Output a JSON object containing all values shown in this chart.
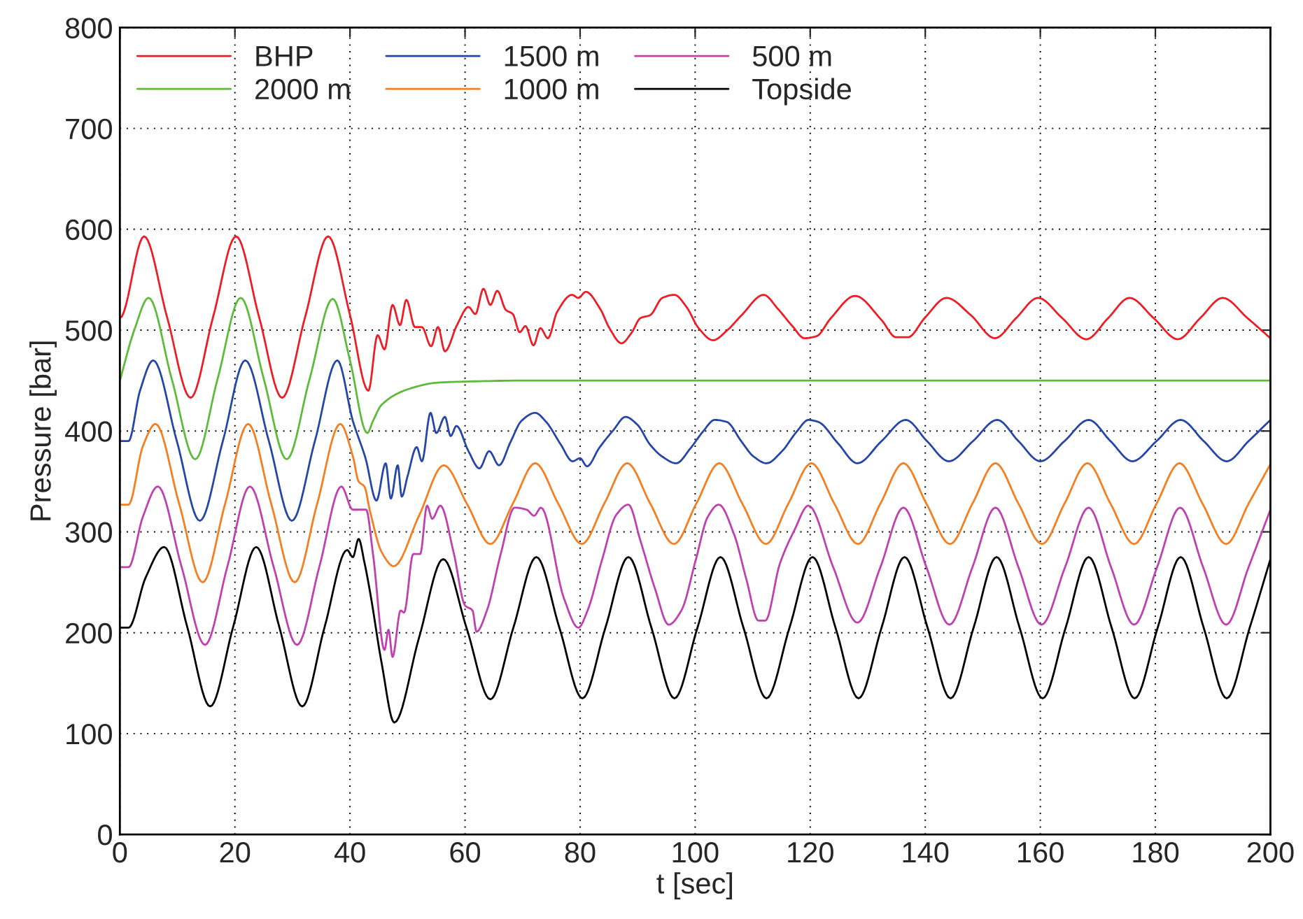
{
  "chart_data": {
    "type": "line",
    "xlabel": "t [sec]",
    "ylabel": "Pressure [bar]",
    "xlim": [
      0,
      200
    ],
    "xticks": [
      0,
      20,
      40,
      60,
      80,
      100,
      120,
      140,
      160,
      180,
      200
    ],
    "ylim": [
      0,
      800
    ],
    "yticks": [
      0,
      100,
      200,
      300,
      400,
      500,
      600,
      700,
      800
    ],
    "grid": true,
    "legend": "top left",
    "marker": "none",
    "line_style": "solid",
    "series": [
      {
        "name": "BHP",
        "color": "#ee1c25",
        "x": [
          0,
          4.2,
          8.2,
          12.3,
          16.2,
          20.2,
          24.2,
          28.2,
          32.2,
          36.2,
          40,
          43.2,
          44.8,
          46,
          47.4,
          48.7,
          49.8,
          51.3,
          52.5,
          54.1,
          55.3,
          56.5,
          58.6,
          60.6,
          61.8,
          63.2,
          64.4,
          65.6,
          67.1,
          68.3,
          69.5,
          70.5,
          71.9,
          73.1,
          74.4,
          76,
          78.6,
          79.7,
          81,
          83.5,
          85.1,
          87.2,
          88.9,
          90.5,
          92.2,
          94.3,
          96.4,
          98.5,
          100.6,
          103.1,
          105.6,
          108.1,
          111.9,
          114.4,
          116.9,
          119,
          121.1,
          123.6,
          127.8,
          132.4,
          134.9,
          137,
          139.9,
          143.7,
          147.9,
          152.1,
          155.8,
          159.6,
          163.8,
          168,
          171.8,
          175.5,
          179.7,
          183.9,
          187.8,
          191.7,
          196,
          200
        ],
        "values": [
          512,
          593,
          513,
          433,
          513,
          593,
          513,
          433,
          513,
          593,
          515,
          440,
          495,
          481,
          525,
          505,
          530,
          503,
          503,
          484,
          503,
          479,
          505,
          523,
          516,
          541,
          525,
          539,
          520,
          516,
          498,
          504,
          485,
          502,
          492,
          518,
          535,
          532,
          538,
          521,
          502,
          487,
          497,
          512,
          515,
          532,
          535,
          523,
          502,
          490,
          500,
          515,
          535,
          521,
          504,
          492,
          494,
          512,
          534,
          510,
          493,
          493,
          512,
          532,
          515,
          492,
          512,
          532,
          512,
          491,
          512,
          532,
          512,
          491,
          512,
          532,
          512,
          492
        ]
      },
      {
        "name": "2000 m",
        "color": "#5dbb3a",
        "x": [
          0,
          2.5,
          5,
          9,
          13.1,
          17,
          21,
          25,
          29,
          33,
          37,
          40,
          43,
          44,
          45.5,
          50.4,
          55.3,
          60,
          70,
          200
        ],
        "values": [
          450,
          500,
          532,
          452,
          372,
          452,
          532,
          452,
          372,
          452,
          531,
          470,
          398,
          410,
          426,
          442,
          448,
          449,
          450,
          450
        ]
      },
      {
        "name": "1500 m",
        "color": "#2546a8",
        "x": [
          0,
          1.5,
          3.5,
          5.8,
          9.9,
          13.9,
          17.9,
          21.8,
          25.9,
          29.9,
          33.9,
          37.8,
          40.5,
          42.7,
          44.6,
          46.2,
          47.1,
          48.3,
          49,
          50,
          51.6,
          52.5,
          54,
          55,
          56.5,
          57.5,
          58.5,
          60.6,
          62.5,
          64.2,
          65.9,
          67.9,
          69.8,
          72.2,
          74.1,
          76.6,
          78.7,
          80,
          81.2,
          83.3,
          85.8,
          87.9,
          90,
          92.1,
          94.2,
          96.7,
          99.2,
          101.3,
          103.4,
          105.5,
          108,
          110.1,
          112.4,
          115.1,
          117.6,
          119.7,
          121.4,
          124.8,
          128.2,
          132.4,
          136.6,
          140.3,
          144.1,
          148.3,
          152.5,
          156.2,
          160,
          164.2,
          168.4,
          172.2,
          176,
          180.2,
          184.4,
          188.4,
          192.4,
          196.2,
          200
        ],
        "values": [
          390,
          390,
          440,
          470,
          390,
          311,
          390,
          470,
          390,
          311,
          390,
          470,
          410,
          373,
          331,
          368,
          333,
          366,
          335,
          355,
          384,
          370,
          418,
          398,
          414,
          395,
          405,
          380,
          363,
          380,
          366,
          389,
          410,
          418,
          409,
          387,
          370,
          373,
          365,
          383,
          401,
          414,
          406,
          387,
          375,
          368,
          383,
          399,
          411,
          409,
          390,
          375,
          368,
          380,
          399,
          411,
          409,
          388,
          368,
          390,
          411,
          390,
          370,
          390,
          411,
          390,
          370,
          390,
          411,
          390,
          370,
          390,
          411,
          390,
          370,
          390,
          411
        ]
      },
      {
        "name": "1000 m",
        "color": "#f57f20",
        "x": [
          0,
          1.5,
          4,
          6.2,
          10.3,
          14.4,
          18.3,
          22.3,
          26.3,
          30.4,
          34.3,
          38.3,
          40.5,
          41.5,
          42.5,
          43.5,
          45.5,
          47.6,
          52,
          56.3,
          60.4,
          64.4,
          68.3,
          72.2,
          76.2,
          80.3,
          84.2,
          88.2,
          92.2,
          96.3,
          100.2,
          104.2,
          108.2,
          112.3,
          116.2,
          120.2,
          124.2,
          128.3,
          132.2,
          136.2,
          140.2,
          144.3,
          148.2,
          152.2,
          156.2,
          160.3,
          164.2,
          168.2,
          172.2,
          176.3,
          180.2,
          184.2,
          188.2,
          192.3,
          196.2,
          200
        ],
        "values": [
          327,
          327,
          385,
          407,
          328,
          250,
          328,
          407,
          328,
          250,
          328,
          407,
          375,
          350,
          345,
          320,
          280,
          266,
          316,
          366,
          327,
          288,
          328,
          368,
          328,
          288,
          328,
          368,
          328,
          288,
          328,
          368,
          328,
          288,
          328,
          368,
          328,
          288,
          328,
          368,
          328,
          288,
          328,
          368,
          328,
          288,
          328,
          368,
          328,
          288,
          328,
          368,
          328,
          288,
          328,
          367
        ]
      },
      {
        "name": "500 m",
        "color": "#c040b0",
        "x": [
          0,
          1.5,
          4,
          6.6,
          10.7,
          14.8,
          18.7,
          22.6,
          26.7,
          30.8,
          34.7,
          38.5,
          40.5,
          42.8,
          44,
          46,
          46.7,
          47.4,
          48.8,
          49.4,
          51,
          52.2,
          53.4,
          54.3,
          55.7,
          58,
          60,
          61.3,
          62,
          63.8,
          66.2,
          68.6,
          70.7,
          72,
          73.2,
          77.2,
          79.7,
          81.3,
          83.8,
          86.3,
          88.4,
          90.5,
          93,
          95.4,
          97.6,
          100.1,
          102.2,
          104.1,
          106.8,
          108.9,
          111,
          112.2,
          114.7,
          117.2,
          119.7,
          124,
          128.2,
          132.2,
          136.2,
          140.2,
          144.2,
          148.2,
          152.2,
          156.2,
          160.2,
          164.3,
          168.4,
          172.3,
          176.3,
          180.3,
          184.3,
          188.3,
          192.3,
          196.2,
          200
        ],
        "values": [
          265,
          265,
          315,
          345,
          266,
          188,
          266,
          345,
          266,
          188,
          266,
          345,
          322,
          322,
          278,
          183,
          203,
          176,
          222,
          220,
          278,
          278,
          326,
          313,
          326,
          280,
          227,
          222,
          201,
          222,
          278,
          324,
          322,
          316,
          324,
          234,
          205,
          222,
          272,
          317,
          327,
          291,
          244,
          208,
          222,
          272,
          315,
          327,
          297,
          253,
          212,
          212,
          268,
          301,
          326,
          265,
          210,
          265,
          324,
          265,
          208,
          265,
          324,
          265,
          208,
          265,
          324,
          265,
          208,
          265,
          324,
          265,
          208,
          265,
          322
        ]
      },
      {
        "name": "Topside",
        "color": "#000000",
        "x": [
          0,
          1.5,
          4.5,
          7.7,
          11.7,
          15.7,
          19.7,
          23.7,
          27.7,
          31.7,
          35.6,
          39.5,
          40.5,
          41.5,
          42.5,
          43.5,
          45.5,
          47.7,
          52,
          56.2,
          60.3,
          64.4,
          68.4,
          72.4,
          76.4,
          80.4,
          84.4,
          88.4,
          92.4,
          96.4,
          100.4,
          104.4,
          108.4,
          112.4,
          116.4,
          120.4,
          124.4,
          128.4,
          132.4,
          136.4,
          140.4,
          144.4,
          148.4,
          152.4,
          156.4,
          160.4,
          164.4,
          168.4,
          172.4,
          176.4,
          180.4,
          184.4,
          188.4,
          192.4,
          196.4,
          200
        ],
        "values": [
          205,
          205,
          255,
          285,
          206,
          127,
          206,
          285,
          206,
          127,
          206,
          282,
          275,
          293,
          270,
          240,
          170,
          111,
          195,
          273,
          204,
          134,
          205,
          275,
          205,
          135,
          205,
          275,
          205,
          135,
          205,
          275,
          205,
          135,
          205,
          275,
          205,
          135,
          205,
          275,
          205,
          135,
          205,
          275,
          205,
          135,
          205,
          275,
          205,
          135,
          205,
          275,
          205,
          135,
          205,
          273
        ]
      }
    ]
  }
}
